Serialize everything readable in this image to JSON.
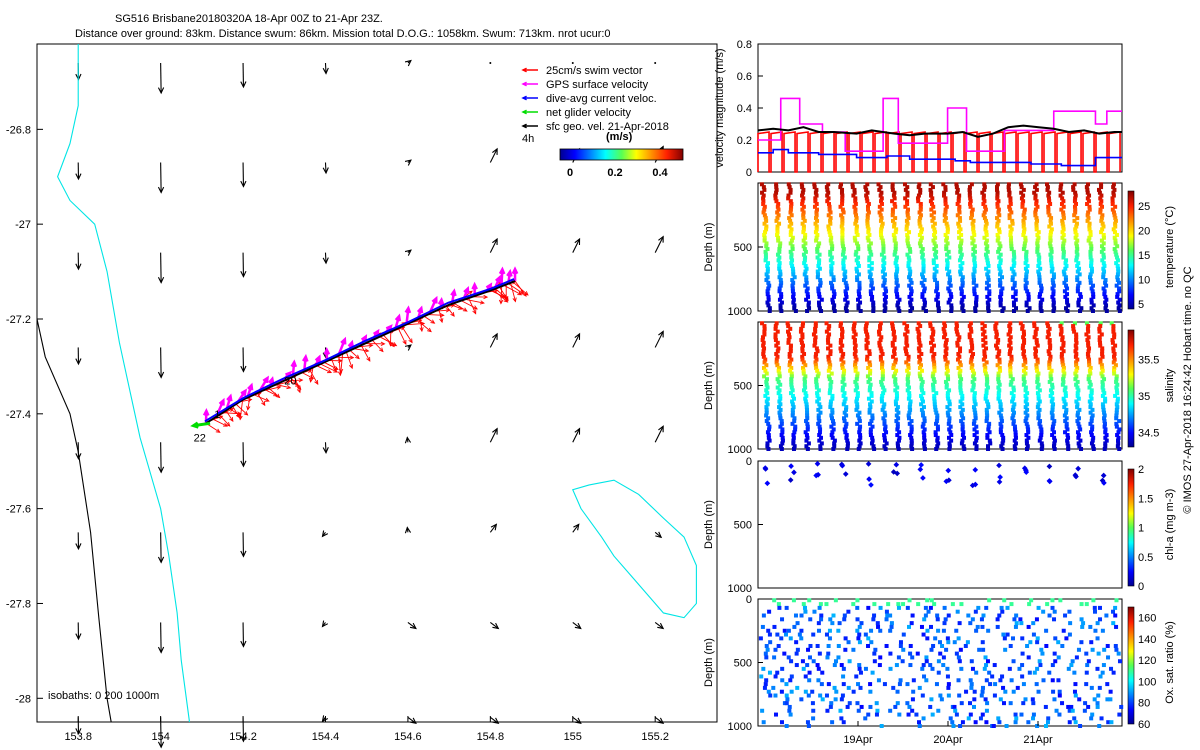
{
  "title_line1": "SG516 Brisbane20180320A 18-Apr 00Z to 21-Apr 23Z.",
  "title_line2": "Distance over ground: 83km. Distance swum: 86km. Mission total D.O.G.: 1058km. Swum: 713km. nrot ucur:0",
  "footer": "© IMOS 27-Apr-2018 16:24:42 Hobart time. no QC",
  "chart_data": [
    {
      "type": "scatter",
      "name": "map",
      "xlim": [
        153.7,
        155.35
      ],
      "ylim": [
        -28.05,
        -26.62
      ],
      "xticks": [
        153.8,
        154,
        154.2,
        154.4,
        154.6,
        154.8,
        155,
        155.2
      ],
      "xtick_labels": [
        "153.8",
        "154",
        "154.2",
        "154.4",
        "154.6",
        "154.8",
        "155",
        "155.2"
      ],
      "yticks": [
        -26.8,
        -27,
        -27.2,
        -27.4,
        -27.6,
        -27.8,
        -28
      ],
      "ytick_labels": [
        "-26.8",
        "-27",
        "-27.2",
        "-27.4",
        "-27.6",
        "-27.8",
        "-28"
      ],
      "legend": {
        "entries": [
          {
            "label": "25cm/s swim vector",
            "color": "#ff0000"
          },
          {
            "label": "GPS surface velocity",
            "color": "#ff00ff"
          },
          {
            "label": "dive-avg current veloc.",
            "color": "#0000ff"
          },
          {
            "label": "net glider velocity",
            "color": "#00dd00"
          },
          {
            "label": "sfc geo. vel. 21-Apr-2018",
            "color": "#000000"
          }
        ],
        "extra_label": "4h",
        "position": "top-right"
      },
      "colorbar": {
        "label": "(m/s)",
        "ticks": [
          "0",
          "0.2",
          "0.4"
        ],
        "range": [
          0,
          0.5
        ]
      },
      "isobath_label": "isobaths: 0   200  1000m",
      "track": [
        [
          154.11,
          -27.42
        ],
        [
          154.2,
          -27.37
        ],
        [
          154.3,
          -27.33
        ],
        [
          154.4,
          -27.29
        ],
        [
          154.5,
          -27.25
        ],
        [
          154.6,
          -27.21
        ],
        [
          154.7,
          -27.17
        ],
        [
          154.8,
          -27.14
        ],
        [
          154.86,
          -27.12
        ]
      ],
      "track_labels": [
        {
          "text": "20",
          "x": 154.3,
          "y": -27.33
        },
        {
          "text": "1",
          "x": 154.13,
          "y": -27.4
        },
        {
          "text": "22",
          "x": 154.08,
          "y": -27.45
        }
      ],
      "geo_grid_x": [
        153.8,
        154,
        154.2,
        154.4,
        154.6,
        154.8,
        155,
        155.2
      ],
      "geo_grid_y": [
        -26.66,
        -26.87,
        -27.06,
        -27.26,
        -27.46,
        -27.65,
        -27.84,
        -28.04
      ],
      "coast_0m": [
        [
          153.7,
          -27.2
        ],
        [
          153.72,
          -27.28
        ],
        [
          153.78,
          -27.4
        ],
        [
          153.8,
          -27.48
        ],
        [
          153.83,
          -27.65
        ],
        [
          153.85,
          -27.83
        ],
        [
          153.87,
          -28.0
        ],
        [
          153.88,
          -28.05
        ]
      ],
      "isobath_200m": [
        [
          153.8,
          -26.62
        ],
        [
          153.8,
          -26.75
        ],
        [
          153.78,
          -26.83
        ],
        [
          153.75,
          -26.9
        ],
        [
          153.78,
          -26.95
        ],
        [
          153.84,
          -27.0
        ],
        [
          153.87,
          -27.1
        ],
        [
          153.9,
          -27.25
        ],
        [
          153.95,
          -27.45
        ],
        [
          154.0,
          -27.6
        ],
        [
          154.02,
          -27.7
        ],
        [
          154.04,
          -27.82
        ],
        [
          154.05,
          -27.92
        ],
        [
          154.07,
          -28.05
        ]
      ],
      "isobath_1000m": [
        [
          155.04,
          -27.55
        ],
        [
          155.1,
          -27.54
        ],
        [
          155.16,
          -27.57
        ],
        [
          155.22,
          -27.62
        ],
        [
          155.27,
          -27.66
        ],
        [
          155.3,
          -27.72
        ],
        [
          155.3,
          -27.8
        ],
        [
          155.27,
          -27.83
        ],
        [
          155.22,
          -27.82
        ],
        [
          155.18,
          -27.78
        ],
        [
          155.1,
          -27.7
        ],
        [
          155.07,
          -27.66
        ],
        [
          155.02,
          -27.6
        ],
        [
          155.0,
          -27.56
        ],
        [
          155.04,
          -27.55
        ]
      ]
    },
    {
      "type": "line",
      "name": "velocity",
      "ylabel": "velocity magnitude (m/s)",
      "ylim": [
        0,
        0.8
      ],
      "yticks": [
        0,
        0.2,
        0.4,
        0.6,
        0.8
      ],
      "ytick_labels": [
        "0",
        "0.2",
        "0.4",
        "0.6",
        "0.8"
      ],
      "xlim": [
        0,
        96
      ],
      "series": [
        {
          "color": "#ff00ff",
          "x": [
            0,
            6,
            6,
            11,
            11,
            17,
            17,
            23,
            23,
            33,
            33,
            37,
            37,
            50,
            50,
            55,
            55,
            65,
            65,
            78,
            78,
            89,
            89,
            92,
            92,
            96
          ],
          "values": [
            0.2,
            0.2,
            0.46,
            0.46,
            0.3,
            0.3,
            0.25,
            0.25,
            0.13,
            0.13,
            0.46,
            0.46,
            0.18,
            0.18,
            0.4,
            0.4,
            0.13,
            0.13,
            0.26,
            0.26,
            0.38,
            0.38,
            0.3,
            0.3,
            0.38,
            0.38
          ]
        },
        {
          "color": "#0000ff",
          "x": [
            0,
            4,
            4,
            8,
            8,
            16,
            16,
            26,
            26,
            34,
            34,
            40,
            40,
            52,
            52,
            56,
            56,
            72,
            72,
            80,
            80,
            89,
            89,
            96
          ],
          "values": [
            0.12,
            0.12,
            0.14,
            0.14,
            0.12,
            0.12,
            0.11,
            0.11,
            0.09,
            0.09,
            0.1,
            0.1,
            0.08,
            0.08,
            0.07,
            0.07,
            0.06,
            0.06,
            0.05,
            0.05,
            0.04,
            0.04,
            0.09,
            0.09
          ]
        },
        {
          "color": "#000000",
          "x": [
            0,
            4,
            8,
            12,
            16,
            20,
            26,
            30,
            36,
            40,
            44,
            50,
            54,
            58,
            62,
            66,
            70,
            74,
            78,
            82,
            86,
            90,
            94,
            96
          ],
          "values": [
            0.26,
            0.27,
            0.26,
            0.28,
            0.25,
            0.25,
            0.24,
            0.26,
            0.24,
            0.23,
            0.24,
            0.24,
            0.25,
            0.22,
            0.24,
            0.28,
            0.29,
            0.28,
            0.27,
            0.25,
            0.26,
            0.24,
            0.25,
            0.25
          ]
        },
        {
          "color": "#ff0000",
          "values": [
            0.25
          ],
          "note": "swim speed near 0.25 per dive, dropping to 0 between dives"
        }
      ]
    },
    {
      "type": "scatter",
      "name": "temperature",
      "ylabel": "Depth (m)",
      "ylim": [
        1000,
        0
      ],
      "yticks": [
        500,
        1000
      ],
      "ytick_labels": [
        "500",
        "1000"
      ],
      "colorbar": {
        "label": "temperature (°C)",
        "range": [
          4,
          28
        ],
        "ticks": [
          "25",
          "20",
          "15",
          "10",
          "5"
        ]
      }
    },
    {
      "type": "scatter",
      "name": "salinity",
      "ylabel": "Depth (m)",
      "ylim": [
        1000,
        0
      ],
      "yticks": [
        500,
        1000
      ],
      "ytick_labels": [
        "500",
        "1000"
      ],
      "colorbar": {
        "label": "salinity",
        "range": [
          34.3,
          35.9
        ],
        "ticks": [
          "35.5",
          "35",
          "34.5"
        ]
      }
    },
    {
      "type": "scatter",
      "name": "chla",
      "ylabel": "Depth (m)",
      "ylim": [
        1000,
        0
      ],
      "yticks": [
        0,
        500,
        1000
      ],
      "ytick_labels": [
        "0",
        "500",
        "1000"
      ],
      "colorbar": {
        "label": "chl-a (mg m-3)",
        "range": [
          0,
          2
        ],
        "ticks": [
          "2",
          "1.5",
          "1",
          "0.5",
          "0"
        ]
      }
    },
    {
      "type": "scatter",
      "name": "oxygen",
      "ylabel": "Depth (m)",
      "ylim": [
        1000,
        0
      ],
      "yticks": [
        0,
        500,
        1000
      ],
      "ytick_labels": [
        "0",
        "500",
        "1000"
      ],
      "xtick_labels": [
        "19Apr",
        "20Apr",
        "21Apr"
      ],
      "colorbar": {
        "label": "Ox. sat. ratio (%)",
        "range": [
          60,
          170
        ],
        "ticks": [
          "160",
          "140",
          "120",
          "100",
          "80",
          "60"
        ]
      }
    }
  ]
}
